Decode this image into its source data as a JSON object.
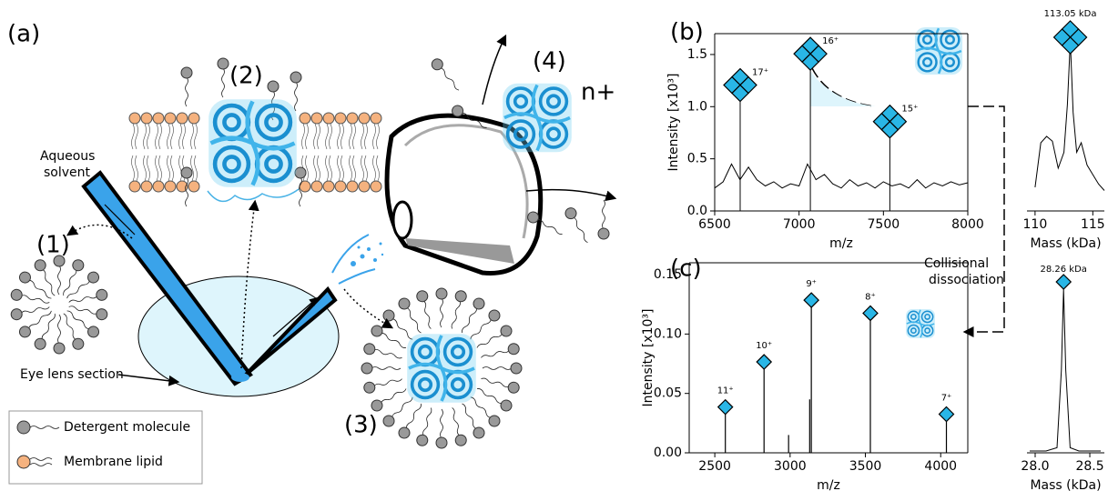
{
  "panel_labels": [
    "(a)",
    "(b)",
    "(c)"
  ],
  "schematic": {
    "steps": [
      "(1)",
      "(2)",
      "(3)",
      "(4)"
    ],
    "charge": "n+",
    "solvent": [
      "Aqueous",
      "solvent"
    ],
    "lens": "Eye lens section",
    "dissociation": [
      "Collisional",
      "dissociation"
    ]
  },
  "legend": [
    "Detergent molecule",
    "Membrane lipid"
  ],
  "chart_data": [
    {
      "type": "line",
      "xlabel": "m/z",
      "ylabel": "Intensity [x10³]",
      "xlim": [
        6500,
        8000
      ],
      "ylim": [
        0,
        1.7
      ],
      "xticks": [
        6500,
        7000,
        7500,
        8000
      ],
      "yticks": [
        {
          "value": 0,
          "label": "0.0"
        },
        0.5,
        {
          "value": 1,
          "label": "1.0"
        },
        1.5
      ],
      "color": "#000000",
      "marker_color": "#29b6e6",
      "x": [
        6500,
        6550,
        6600,
        6650,
        6700,
        6750,
        6800,
        6850,
        6900,
        6950,
        7000,
        7050,
        7100,
        7150,
        7200,
        7250,
        7300,
        7350,
        7400,
        7450,
        7500,
        7550,
        7600,
        7650,
        7700,
        7750,
        7800,
        7850,
        7900,
        7950,
        8000
      ],
      "values": [
        0.22,
        0.28,
        0.45,
        0.3,
        0.42,
        0.3,
        0.24,
        0.28,
        0.22,
        0.26,
        0.24,
        0.45,
        0.3,
        0.35,
        0.26,
        0.22,
        0.3,
        0.24,
        0.27,
        0.22,
        0.28,
        0.24,
        0.26,
        0.22,
        0.3,
        0.22,
        0.27,
        0.24,
        0.28,
        0.25,
        0.27
      ],
      "peaks": {
        "x": [
          6651,
          7067,
          7538
        ],
        "values": [
          1.05,
          1.35,
          0.7
        ],
        "labels": [
          "17⁺",
          "16⁺",
          "15⁺"
        ]
      }
    },
    {
      "type": "profile",
      "xlabel": "Mass (kDa)",
      "xlim": [
        109.3,
        116
      ],
      "ylim": [
        0,
        1
      ],
      "xticks": [
        110,
        115
      ],
      "color": "#000000",
      "marker_color": "#29b6e6",
      "x": [
        110,
        110.5,
        111,
        111.5,
        112,
        112.5,
        112.8,
        113.05,
        113.3,
        113.6,
        114,
        114.5,
        115,
        115.5,
        116
      ],
      "values": [
        0.08,
        0.36,
        0.4,
        0.37,
        0.2,
        0.3,
        0.6,
        1,
        0.55,
        0.3,
        0.36,
        0.22,
        0.16,
        0.1,
        0.06
      ],
      "peak_label": "113.05 kDa"
    },
    {
      "type": "stem",
      "xlabel": "m/z",
      "ylabel": "Intensity [x10³]",
      "xlim": [
        2330,
        4180
      ],
      "ylim": [
        0,
        0.16
      ],
      "xticks": [
        2500,
        3000,
        3500,
        4000
      ],
      "yticks": [
        {
          "value": 0,
          "label": "0.00"
        },
        {
          "value": 0.05,
          "label": "0.05"
        },
        {
          "value": 0.1,
          "label": "0.10"
        },
        {
          "value": 0.15,
          "label": "0.15"
        }
      ],
      "color": "#000000",
      "marker_color": "#29b6e6",
      "x": [
        2570,
        2827,
        2990,
        3130,
        3141,
        3533,
        4038
      ],
      "values": [
        0.037,
        0.075,
        0.015,
        0.045,
        0.127,
        0.116,
        0.031
      ],
      "labels": [
        "11⁺",
        "10⁺",
        null,
        null,
        "9⁺",
        "8⁺",
        "7⁺"
      ]
    },
    {
      "type": "profile",
      "xlabel": "Mass (kDa)",
      "xlim": [
        27.925,
        28.633
      ],
      "ylim": [
        0,
        1
      ],
      "xticks": [
        {
          "value": 28,
          "label": "28.0"
        },
        28.5
      ],
      "color": "#000000",
      "marker_color": "#29b6e6",
      "x": [
        27.95,
        28.1,
        28.2,
        28.24,
        28.26,
        28.28,
        28.32,
        28.4,
        28.6
      ],
      "values": [
        0,
        0,
        0.02,
        0.5,
        1,
        0.5,
        0.02,
        0,
        0
      ],
      "peak_label": "28.26 kDa"
    }
  ]
}
